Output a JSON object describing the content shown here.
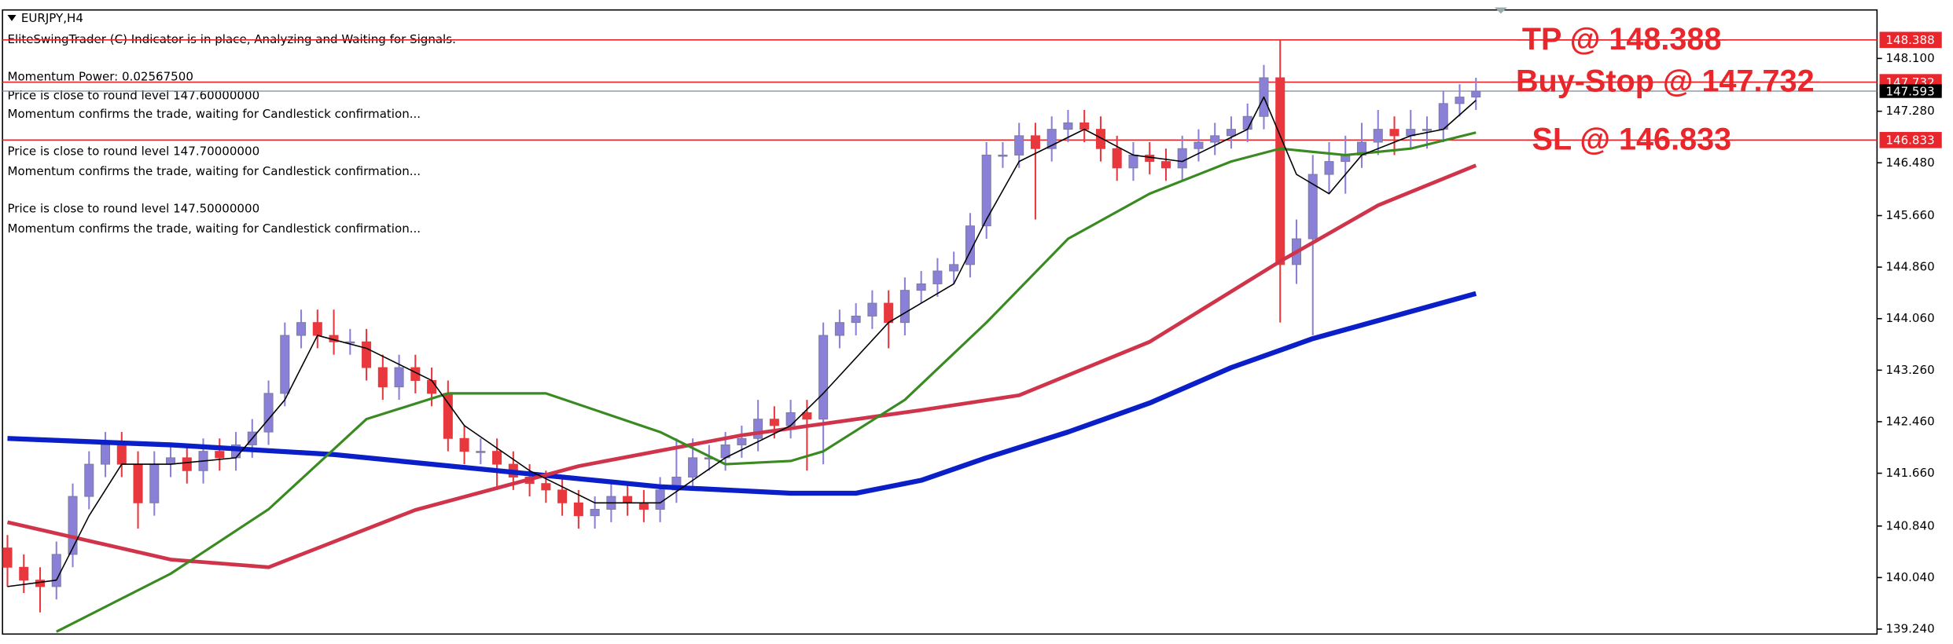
{
  "chart_data": {
    "type": "candlestick",
    "title": "EURJPY,H4",
    "info_lines": [
      "EliteSwingTrader (C) Indicator is in place, Analyzing and Waiting for Signals.",
      "Momentum Power: 0.02567500",
      "Price is close to round level 147.60000000",
      "Momentum confirms the trade, waiting for Candlestick confirmation...",
      "Price is close to round level 147.70000000",
      "Momentum confirms the trade, waiting for Candlestick confirmation...",
      "Price is close to round level 147.50000000",
      "Momentum confirms the trade, waiting for Candlestick confirmation..."
    ],
    "up_color": "#8a80d8",
    "down_color": "#e8383d",
    "open": [
      140.5,
      140.2,
      140.0,
      139.9,
      140.4,
      141.3,
      141.8,
      142.1,
      141.8,
      141.2,
      141.8,
      141.9,
      141.7,
      142.0,
      141.9,
      142.1,
      142.3,
      142.9,
      143.8,
      144.0,
      143.8,
      143.7,
      143.7,
      143.3,
      143.0,
      143.3,
      143.1,
      142.9,
      142.2,
      142.0,
      142.0,
      141.8,
      141.6,
      141.5,
      141.4,
      141.2,
      141.0,
      141.1,
      141.3,
      141.2,
      141.1,
      141.4,
      141.6,
      141.9,
      141.9,
      142.1,
      142.2,
      142.5,
      142.4,
      142.6,
      142.5,
      143.8,
      144.0,
      144.1,
      144.3,
      144.0,
      144.5,
      144.6,
      144.8,
      144.9,
      145.5,
      146.6,
      146.6,
      146.9,
      146.7,
      147.0,
      147.1,
      147.0,
      146.7,
      146.4,
      146.6,
      146.5,
      146.4,
      146.7,
      146.8,
      146.9,
      147.0,
      147.2,
      147.8,
      144.9,
      145.3,
      146.3,
      146.5,
      146.6,
      146.8,
      147.0,
      146.9,
      147.0,
      147.0,
      147.4,
      147.5
    ],
    "high": [
      140.7,
      140.4,
      140.2,
      140.6,
      141.5,
      142.0,
      142.3,
      142.3,
      142.0,
      142.0,
      142.1,
      142.1,
      142.2,
      142.2,
      142.3,
      142.5,
      143.1,
      144.0,
      144.2,
      144.2,
      144.2,
      143.9,
      143.9,
      143.5,
      143.5,
      143.5,
      143.3,
      143.1,
      142.4,
      142.2,
      142.2,
      142.0,
      141.8,
      141.7,
      141.6,
      141.4,
      141.3,
      141.5,
      141.5,
      141.4,
      141.6,
      142.2,
      142.2,
      142.1,
      142.3,
      142.4,
      142.8,
      142.7,
      142.8,
      142.8,
      144.0,
      144.2,
      144.3,
      144.5,
      144.5,
      144.7,
      144.8,
      145.0,
      145.1,
      145.7,
      146.8,
      146.8,
      147.1,
      147.1,
      147.2,
      147.3,
      147.3,
      147.2,
      146.9,
      146.8,
      146.8,
      146.7,
      146.9,
      147.0,
      147.1,
      147.2,
      147.4,
      148.0,
      148.388,
      145.6,
      146.6,
      146.8,
      146.9,
      147.1,
      147.3,
      147.2,
      147.3,
      147.2,
      147.6,
      147.7,
      147.8
    ],
    "low": [
      139.9,
      139.8,
      139.5,
      139.7,
      140.2,
      141.1,
      141.6,
      141.6,
      140.8,
      141.0,
      141.6,
      141.5,
      141.5,
      141.7,
      141.7,
      141.9,
      142.1,
      142.7,
      143.6,
      143.6,
      143.5,
      143.5,
      143.1,
      142.8,
      142.8,
      142.9,
      142.7,
      142.0,
      141.8,
      141.8,
      141.4,
      141.4,
      141.3,
      141.2,
      141.0,
      140.8,
      140.8,
      140.9,
      141.0,
      140.9,
      140.9,
      141.2,
      141.4,
      141.7,
      141.7,
      141.9,
      142.0,
      142.2,
      142.2,
      141.7,
      141.8,
      143.6,
      143.8,
      143.9,
      143.6,
      143.8,
      144.3,
      144.4,
      144.6,
      144.7,
      145.3,
      146.4,
      146.4,
      145.6,
      146.5,
      146.8,
      146.8,
      146.5,
      146.2,
      146.2,
      146.3,
      146.2,
      146.2,
      146.5,
      146.6,
      146.7,
      146.8,
      147.0,
      144.0,
      144.6,
      143.8,
      146.0,
      146.0,
      146.4,
      146.6,
      146.6,
      146.7,
      146.7,
      146.8,
      147.2,
      147.3
    ],
    "close": [
      140.2,
      140.0,
      139.9,
      140.4,
      141.3,
      141.8,
      142.1,
      141.8,
      141.2,
      141.8,
      141.9,
      141.7,
      142.0,
      141.9,
      142.1,
      142.3,
      142.9,
      143.8,
      144.0,
      143.8,
      143.7,
      143.7,
      143.3,
      143.0,
      143.3,
      143.1,
      142.9,
      142.2,
      142.0,
      142.0,
      141.8,
      141.6,
      141.5,
      141.4,
      141.2,
      141.0,
      141.1,
      141.3,
      141.2,
      141.1,
      141.4,
      141.6,
      141.9,
      141.9,
      142.1,
      142.2,
      142.5,
      142.4,
      142.6,
      142.5,
      143.8,
      144.0,
      144.1,
      144.3,
      144.0,
      144.5,
      144.6,
      144.8,
      144.9,
      145.5,
      146.6,
      146.6,
      146.9,
      146.7,
      147.0,
      147.1,
      147.0,
      146.7,
      146.4,
      146.6,
      146.5,
      146.4,
      146.7,
      146.8,
      146.9,
      147.0,
      147.2,
      147.8,
      144.9,
      145.3,
      146.3,
      146.5,
      146.6,
      146.8,
      147.0,
      146.9,
      147.0,
      147.0,
      147.4,
      147.5,
      147.593
    ],
    "series": [
      {
        "color": "#0a1fc8",
        "width": 4,
        "x": [
          0,
          10,
          20,
          30,
          40,
          48,
          52,
          56,
          60,
          65,
          70,
          75,
          80,
          85,
          90
        ],
        "values": [
          142.2,
          142.1,
          141.95,
          141.7,
          141.45,
          141.35,
          141.35,
          141.55,
          141.9,
          142.3,
          142.75,
          143.3,
          143.75,
          144.1,
          144.45
        ]
      },
      {
        "color": "#d0344a",
        "width": 3,
        "x": [
          0,
          10,
          16,
          25,
          35,
          45,
          56,
          62,
          70,
          78,
          84,
          90
        ],
        "values": [
          140.9,
          140.32,
          140.2,
          141.09,
          141.77,
          142.25,
          142.64,
          142.87,
          143.7,
          144.95,
          145.82,
          146.44
        ]
      },
      {
        "color": "#3a8a22",
        "width": 2,
        "x": [
          3,
          10,
          16,
          22,
          27,
          33,
          40,
          44,
          48,
          50,
          55,
          60,
          65,
          70,
          75,
          78,
          82,
          86,
          90
        ],
        "values": [
          139.2,
          140.1,
          141.1,
          142.5,
          142.9,
          142.9,
          142.3,
          141.8,
          141.85,
          142.0,
          142.8,
          144.0,
          145.3,
          146.0,
          146.5,
          146.7,
          146.6,
          146.7,
          146.95
        ]
      },
      {
        "color": "#000000",
        "width": 1,
        "x": [
          0,
          3,
          5,
          7,
          10,
          14,
          17,
          19,
          22,
          26,
          28,
          32,
          36,
          40,
          44,
          48,
          50,
          54,
          58,
          60,
          62,
          66,
          69,
          72,
          76,
          77,
          79,
          81,
          83,
          86,
          88,
          90
        ],
        "values": [
          139.9,
          140.0,
          141.0,
          141.8,
          141.8,
          141.9,
          142.8,
          143.8,
          143.6,
          143.1,
          142.4,
          141.7,
          141.2,
          141.2,
          141.9,
          142.4,
          142.9,
          144.0,
          144.6,
          145.6,
          146.5,
          147.0,
          146.6,
          146.5,
          147.0,
          147.5,
          146.3,
          146.0,
          146.6,
          146.9,
          147.0,
          147.45
        ]
      }
    ],
    "levels": [
      {
        "label": "TP @ 148.388",
        "value": 148.388,
        "color": "#e8262b"
      },
      {
        "label": "Buy-Stop @ 147.732",
        "value": 147.732,
        "color": "#e8262b"
      },
      {
        "label": "SL @ 146.833",
        "value": 146.833,
        "color": "#e8262b"
      }
    ],
    "current_price": 147.593,
    "ylim": [
      139.163,
      148.853
    ],
    "yticks": [
      {
        "value": 139.24,
        "label": "139.240"
      },
      {
        "value": 140.04,
        "label": "140.040"
      },
      {
        "value": 140.84,
        "label": "140.840"
      },
      {
        "value": 141.66,
        "label": "141.660"
      },
      {
        "value": 142.46,
        "label": "142.460"
      },
      {
        "value": 143.26,
        "label": "143.260"
      },
      {
        "value": 144.06,
        "label": "144.060"
      },
      {
        "value": 144.86,
        "label": "144.860"
      },
      {
        "value": 145.66,
        "label": "145.660"
      },
      {
        "value": 146.48,
        "label": "146.480"
      },
      {
        "value": 147.28,
        "label": "147.280"
      },
      {
        "value": 148.1,
        "label": "148.100"
      }
    ]
  }
}
